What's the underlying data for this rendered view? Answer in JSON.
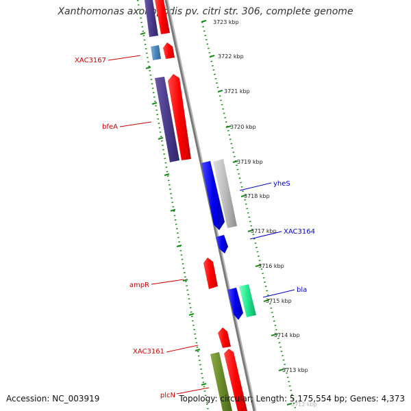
{
  "title": "Xanthomonas axonopodis pv. citri str. 306, complete genome",
  "footer": {
    "accession": "Accession: NC_003919",
    "summary": "Topology: circular; Length: 5,175,554 bp; Genes: 4,373"
  },
  "colors": {
    "reverse_label": "#cc0000",
    "forward_label": "#0000cc",
    "tick": "#1a8a1a",
    "backbone": "#8a8a8a"
  },
  "ticks": [
    "3723 kbp",
    "3722 kbp",
    "3721 kbp",
    "3720 kbp",
    "3719 kbp",
    "3718 kbp",
    "3717 kbp",
    "3716 kbp",
    "3715 kbp",
    "3714 kbp",
    "3713 kbp",
    "3712 kbp"
  ],
  "gene_labels": [
    {
      "text": "XAC3167",
      "strand": "reverse"
    },
    {
      "text": "bfeA",
      "strand": "reverse"
    },
    {
      "text": "yheS",
      "strand": "forward"
    },
    {
      "text": "XAC3164",
      "strand": "forward"
    },
    {
      "text": "ampR",
      "strand": "reverse"
    },
    {
      "text": "bla",
      "strand": "forward"
    },
    {
      "text": "XAC3161",
      "strand": "reverse"
    },
    {
      "text": "plcN",
      "strand": "reverse"
    }
  ]
}
